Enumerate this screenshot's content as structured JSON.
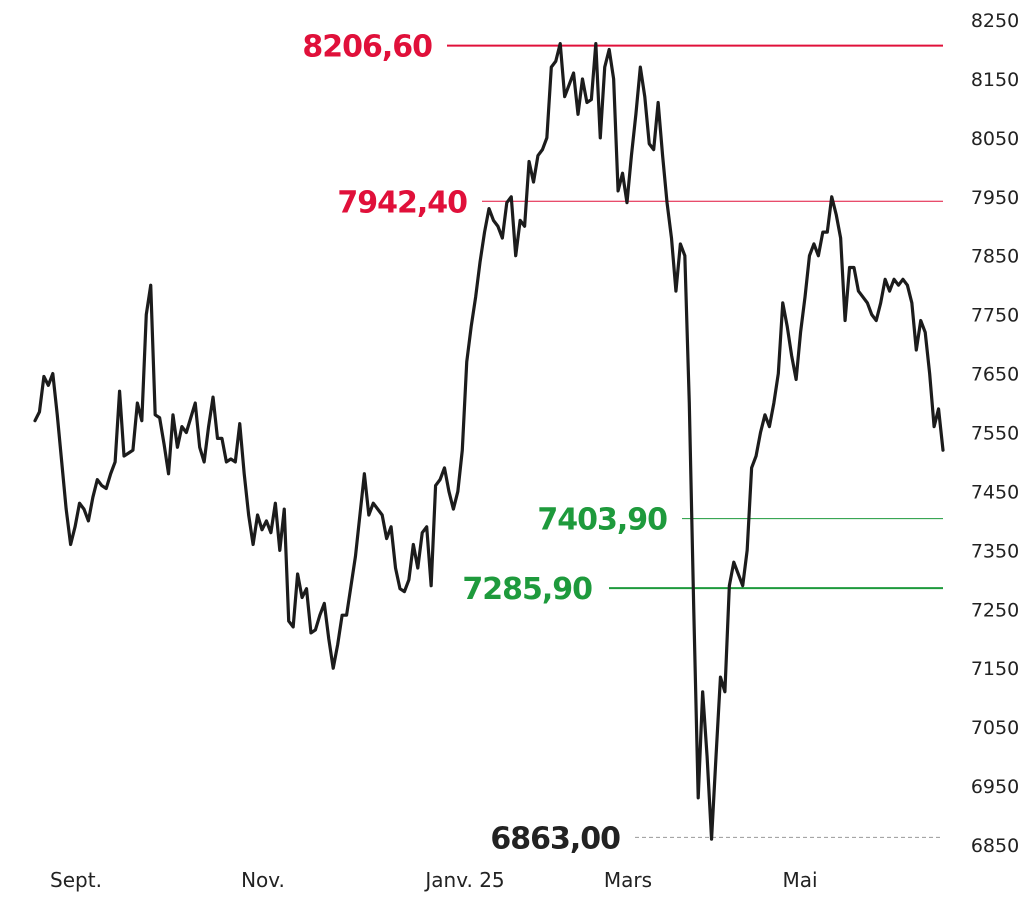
{
  "chart_data": {
    "type": "line",
    "title": "",
    "xlabel": "",
    "ylabel": "",
    "ylim": [
      6850,
      8250
    ],
    "y_ticks": [
      "8250",
      "8150",
      "8050",
      "7950",
      "7850",
      "7750",
      "7650",
      "7550",
      "7450",
      "7350",
      "7250",
      "7150",
      "7050",
      "6950",
      "6850"
    ],
    "x_ticks": [
      "Sept.",
      "Nov.",
      "Janv. 25",
      "Mars",
      "Mai"
    ],
    "levels": [
      {
        "label": "8206,60",
        "value": 8206.6,
        "color": "#e0103a",
        "style": "solid-thick"
      },
      {
        "label": "7942,40",
        "value": 7942.4,
        "color": "#e0103a",
        "style": "solid-thin"
      },
      {
        "label": "7403,90",
        "value": 7403.9,
        "color": "#1e9a3c",
        "style": "solid-thin"
      },
      {
        "label": "7285,90",
        "value": 7285.9,
        "color": "#1e9a3c",
        "style": "solid-thick"
      },
      {
        "label": "6863,00",
        "value": 6863.0,
        "color": "#222222",
        "style": "dashed"
      }
    ],
    "series": [
      {
        "values": [
          7570,
          7585,
          7645,
          7630,
          7650,
          7580,
          7500,
          7420,
          7360,
          7390,
          7430,
          7420,
          7400,
          7440,
          7470,
          7460,
          7455,
          7480,
          7500,
          7620,
          7510,
          7515,
          7520,
          7600,
          7570,
          7750,
          7800,
          7580,
          7575,
          7530,
          7480,
          7580,
          7525,
          7560,
          7550,
          7575,
          7600,
          7525,
          7500,
          7560,
          7610,
          7540,
          7540,
          7500,
          7505,
          7500,
          7565,
          7480,
          7410,
          7360,
          7410,
          7385,
          7400,
          7380,
          7430,
          7350,
          7420,
          7230,
          7220,
          7310,
          7270,
          7285,
          7210,
          7215,
          7240,
          7260,
          7200,
          7150,
          7190,
          7240,
          7240,
          7290,
          7340,
          7410,
          7480,
          7410,
          7430,
          7420,
          7410,
          7370,
          7390,
          7320,
          7285,
          7280,
          7300,
          7360,
          7320,
          7380,
          7390,
          7290,
          7460,
          7470,
          7490,
          7450,
          7420,
          7450,
          7520,
          7670,
          7730,
          7780,
          7840,
          7890,
          7930,
          7910,
          7900,
          7880,
          7940,
          7950,
          7850,
          7910,
          7900,
          8010,
          7975,
          8020,
          8030,
          8050,
          8170,
          8180,
          8210,
          8120,
          8140,
          8160,
          8090,
          8150,
          8110,
          8115,
          8210,
          8050,
          8170,
          8200,
          8150,
          7960,
          7990,
          7940,
          8020,
          8090,
          8170,
          8120,
          8040,
          8030,
          8110,
          8020,
          7940,
          7880,
          7790,
          7870,
          7850,
          7600,
          7250,
          6930,
          7110,
          7000,
          6860,
          7000,
          7135,
          7110,
          7290,
          7330,
          7310,
          7290,
          7350,
          7490,
          7510,
          7550,
          7580,
          7560,
          7600,
          7650,
          7770,
          7730,
          7680,
          7640,
          7720,
          7780,
          7850,
          7870,
          7850,
          7890,
          7890,
          7950,
          7920,
          7880,
          7740,
          7830,
          7830,
          7790,
          7780,
          7770,
          7750,
          7740,
          7770,
          7810,
          7790,
          7810,
          7800,
          7810,
          7800,
          7770,
          7690,
          7740,
          7720,
          7650,
          7560,
          7590,
          7520
        ]
      }
    ]
  }
}
